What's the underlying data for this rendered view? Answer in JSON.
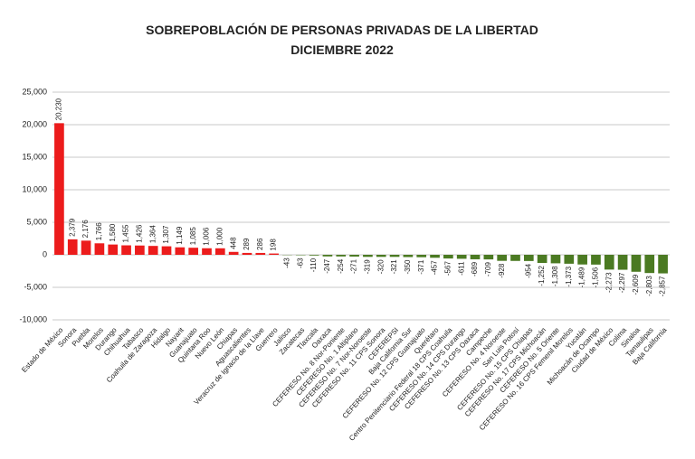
{
  "chart_data": {
    "type": "bar",
    "title": "SOBREPOBLACIÓN DE PERSONAS PRIVADAS DE LA LIBERTAD",
    "subtitle": "DICIEMBRE 2022",
    "categories": [
      "Estado de México",
      "Sonora",
      "Puebla",
      "Morelos",
      "Durango",
      "Chihuahua",
      "Tabasco",
      "Coahuila de Zaragoza",
      "Hidalgo",
      "Nayarit",
      "Guanajuato",
      "Quintana Roo",
      "Nuevo León",
      "Chiapas",
      "Aguascalientes",
      "Veracruz de Ignacio de la Llave",
      "Guerrero",
      "Jalisco",
      "Zacatecas",
      "Tlaxcala",
      "Oaxaca",
      "CEFERESO No. 8 Nor-Poniente",
      "CEFERESO No. 1 Altiplano",
      "CEFERESO No. 7 Nor-Noroeste",
      "CEFERESO No. 11 CPS Sonora",
      "CEFEREPSI",
      "Baja California Sur",
      "CEFERESO No. 12 CPS Guanajuato",
      "Querétaro",
      "Centro Penitenciario Federal 18 CPS Coahuila",
      "CEFERESO No. 14 CPS Durango",
      "CEFERESO No. 13 CPS Oaxaca",
      "Campeche",
      "CEFERESO No. 4 Noroeste",
      "San Luis Potosí",
      "CEFERESO No. 15 CPS Chiapas",
      "CEFERESO No. 17 CPS Michoacán",
      "CEFERESO No. 5 Oriente",
      "CEFERESO No. 16 CPS Femenil Morelos",
      "Yucatán",
      "Michoacán de Ocampo",
      "Ciudad de México",
      "Colima",
      "Sinaloa",
      "Tamaulipas",
      "Baja California"
    ],
    "values": [
      20230,
      2379,
      2176,
      1766,
      1580,
      1455,
      1426,
      1364,
      1307,
      1149,
      1085,
      1006,
      1000,
      448,
      289,
      286,
      198,
      -43,
      -63,
      -110,
      -247,
      -254,
      -271,
      -319,
      -320,
      -321,
      -350,
      -371,
      -457,
      -567,
      -611,
      -689,
      -709,
      -928,
      -940,
      -954,
      -1252,
      -1308,
      -1373,
      -1489,
      -1506,
      -2273,
      -2297,
      -2609,
      -2803,
      -2857
    ],
    "value_labels": [
      "20,230",
      "2,379",
      "2,176",
      "1,766",
      "1,580",
      "1,455",
      "1,426",
      "1,364",
      "1,307",
      "1,149",
      "1,085",
      "1,006",
      "1,000",
      "448",
      "289",
      "286",
      "198",
      "-43",
      "-63",
      "-110",
      "-247",
      "-254",
      "-271",
      "-319",
      "-320",
      "-321",
      "-350",
      "-371",
      "-457",
      "-567",
      "-611",
      "-689",
      "-709",
      "-928",
      null,
      "-954",
      "-1,252",
      "-1,308",
      "-1,373",
      "-1,489",
      "-1,506",
      "-2,273",
      "-2,297",
      "-2,609",
      "-2,803",
      "-2,857"
    ],
    "color_positive": "#ec1c1c",
    "color_negative": "#4b7a22",
    "ylim": [
      -10000,
      25000
    ],
    "yticks": [
      {
        "value": -10000,
        "label": "-10,000"
      },
      {
        "value": -5000,
        "label": "-5,000"
      },
      0,
      {
        "value": 5000,
        "label": "5,000"
      },
      {
        "value": 10000,
        "label": "10,000"
      },
      {
        "value": 15000,
        "label": "15,000"
      },
      {
        "value": 20000,
        "label": "20,000"
      },
      {
        "value": 25000,
        "label": "25,000"
      }
    ],
    "grid": true
  }
}
